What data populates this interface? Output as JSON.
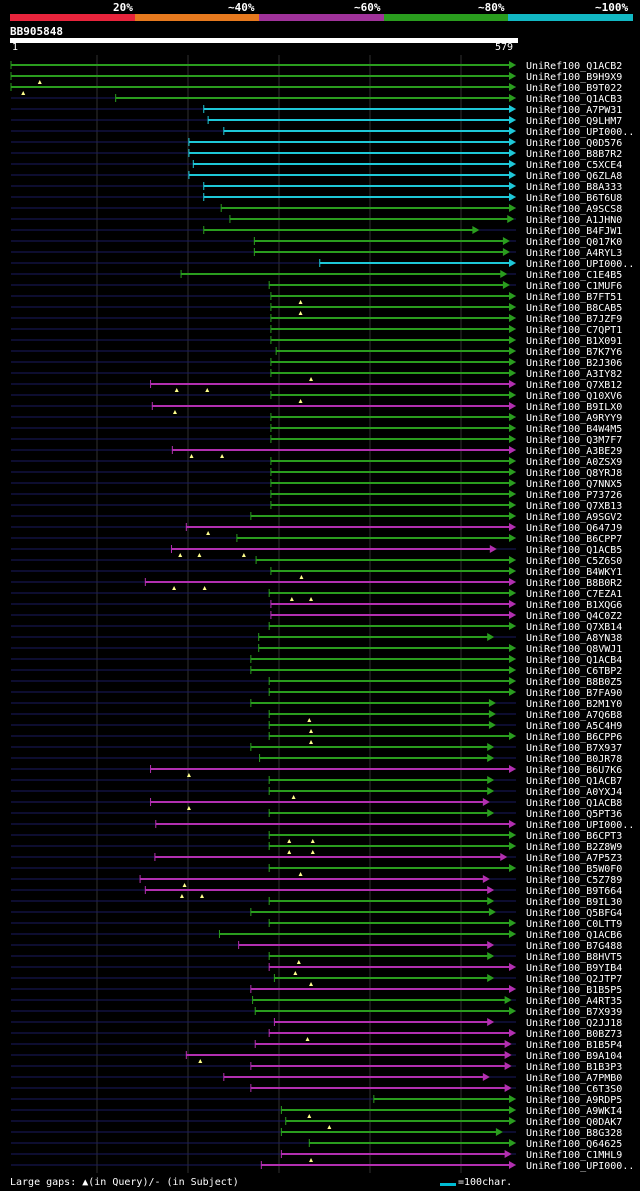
{
  "legend": {
    "labels": [
      "20%",
      "~40%",
      "~60%",
      "~80%",
      "~100%"
    ],
    "colors": [
      "#e8243c",
      "#e6791e",
      "#a0329a",
      "#2a9d1e",
      "#12b8c4"
    ]
  },
  "query": {
    "name": "BB905848",
    "start": "1",
    "end": "579",
    "length": 579
  },
  "hit_colors": {
    "green": "#2a9d1e",
    "magenta": "#b22fb0",
    "cyan": "#1ec8d8",
    "dark": "#1a1a60",
    "marker": "#ffff8c"
  },
  "hits": [
    {
      "name": "UniRef100_Q1ACB2",
      "color": "green",
      "segs": [
        [
          1,
          580
        ]
      ],
      "gaps": []
    },
    {
      "name": "UniRef100_B9H9X9",
      "color": "green",
      "segs": [
        [
          1,
          580
        ]
      ],
      "gaps": [
        34
      ]
    },
    {
      "name": "UniRef100_B9T022",
      "color": "green",
      "segs": [
        [
          1,
          580
        ]
      ],
      "gaps": [
        15
      ]
    },
    {
      "name": "UniRef100_Q1ACB3",
      "color": "green",
      "segs": [
        [
          121,
          580
        ]
      ],
      "gaps": []
    },
    {
      "name": "UniRef100_A7PW31",
      "color": "cyan",
      "segs": [
        [
          222,
          580
        ]
      ],
      "gaps": []
    },
    {
      "name": "UniRef100_Q9LHM7",
      "color": "cyan",
      "segs": [
        [
          227,
          580
        ]
      ],
      "gaps": []
    },
    {
      "name": "UniRef100_UPI000..",
      "color": "cyan",
      "segs": [
        [
          245,
          580
        ]
      ],
      "gaps": []
    },
    {
      "name": "UniRef100_Q0D576",
      "color": "cyan",
      "segs": [
        [
          205,
          580
        ]
      ],
      "gaps": []
    },
    {
      "name": "UniRef100_B8B7R2",
      "color": "cyan",
      "segs": [
        [
          205,
          580
        ]
      ],
      "gaps": []
    },
    {
      "name": "UniRef100_C5XCE4",
      "color": "cyan",
      "segs": [
        [
          210,
          580
        ]
      ],
      "gaps": []
    },
    {
      "name": "UniRef100_Q6ZLA8",
      "color": "cyan",
      "segs": [
        [
          205,
          580
        ]
      ],
      "gaps": []
    },
    {
      "name": "UniRef100_B8A333",
      "color": "cyan",
      "segs": [
        [
          222,
          580
        ]
      ],
      "gaps": []
    },
    {
      "name": "UniRef100_B6T6U8",
      "color": "cyan",
      "segs": [
        [
          222,
          580
        ]
      ],
      "gaps": []
    },
    {
      "name": "UniRef100_A9SCS8",
      "color": "green",
      "segs": [
        [
          242,
          580
        ]
      ],
      "gaps": []
    },
    {
      "name": "UniRef100_A1JHN0",
      "color": "green",
      "segs": [
        [
          252,
          578
        ]
      ],
      "gaps": []
    },
    {
      "name": "UniRef100_B4FJW1",
      "color": "green",
      "segs": [
        [
          222,
          538
        ]
      ],
      "gaps": []
    },
    {
      "name": "UniRef100_Q017K0",
      "color": "green",
      "segs": [
        [
          280,
          573
        ]
      ],
      "gaps": []
    },
    {
      "name": "UniRef100_A4RYL3",
      "color": "green",
      "segs": [
        [
          280,
          573
        ]
      ],
      "gaps": []
    },
    {
      "name": "UniRef100_UPI000..",
      "color": "cyan",
      "segs": [
        [
          355,
          580
        ]
      ],
      "gaps": []
    },
    {
      "name": "UniRef100_C1E4B5",
      "color": "green",
      "segs": [
        [
          196,
          570
        ]
      ],
      "gaps": []
    },
    {
      "name": "UniRef100_C1MUF6",
      "color": "green",
      "segs": [
        [
          297,
          573
        ]
      ],
      "gaps": []
    },
    {
      "name": "UniRef100_B7FT51",
      "color": "green",
      "segs": [
        [
          299,
          580
        ]
      ],
      "gaps": [
        333
      ]
    },
    {
      "name": "UniRef100_B8CAB5",
      "color": "green",
      "segs": [
        [
          299,
          580
        ]
      ],
      "gaps": [
        333
      ]
    },
    {
      "name": "UniRef100_B7JZF9",
      "color": "green",
      "segs": [
        [
          299,
          580
        ]
      ],
      "gaps": []
    },
    {
      "name": "UniRef100_C7QPT1",
      "color": "green",
      "segs": [
        [
          299,
          580
        ]
      ],
      "gaps": []
    },
    {
      "name": "UniRef100_B1X091",
      "color": "green",
      "segs": [
        [
          299,
          580
        ]
      ],
      "gaps": []
    },
    {
      "name": "UniRef100_B7K7Y6",
      "color": "green",
      "segs": [
        [
          305,
          580
        ]
      ],
      "gaps": []
    },
    {
      "name": "UniRef100_B2J306",
      "color": "green",
      "segs": [
        [
          299,
          580
        ]
      ],
      "gaps": []
    },
    {
      "name": "UniRef100_A3IY82",
      "color": "green",
      "segs": [
        [
          299,
          580
        ]
      ],
      "gaps": [
        345
      ]
    },
    {
      "name": "UniRef100_Q7XB12",
      "color": "magenta",
      "segs": [
        [
          161,
          580
        ]
      ],
      "gaps": [
        191,
        226
      ]
    },
    {
      "name": "UniRef100_Q10XV6",
      "color": "green",
      "segs": [
        [
          299,
          580
        ]
      ],
      "gaps": [
        333
      ]
    },
    {
      "name": "UniRef100_B9ILX0",
      "color": "magenta",
      "segs": [
        [
          163,
          580
        ]
      ],
      "gaps": [
        189
      ]
    },
    {
      "name": "UniRef100_A9RYY9",
      "color": "green",
      "segs": [
        [
          299,
          580
        ]
      ],
      "gaps": []
    },
    {
      "name": "UniRef100_B4W4M5",
      "color": "green",
      "segs": [
        [
          299,
          580
        ]
      ],
      "gaps": []
    },
    {
      "name": "UniRef100_Q3M7F7",
      "color": "green",
      "segs": [
        [
          299,
          580
        ]
      ],
      "gaps": []
    },
    {
      "name": "UniRef100_A3BE29",
      "color": "magenta",
      "segs": [
        [
          186,
          580
        ]
      ],
      "gaps": [
        208,
        243
      ]
    },
    {
      "name": "UniRef100_A0ZSX9",
      "color": "green",
      "segs": [
        [
          299,
          580
        ]
      ],
      "gaps": []
    },
    {
      "name": "UniRef100_Q8YRJ8",
      "color": "green",
      "segs": [
        [
          299,
          580
        ]
      ],
      "gaps": []
    },
    {
      "name": "UniRef100_Q7NNX5",
      "color": "green",
      "segs": [
        [
          299,
          580
        ]
      ],
      "gaps": []
    },
    {
      "name": "UniRef100_P73726",
      "color": "green",
      "segs": [
        [
          299,
          580
        ]
      ],
      "gaps": []
    },
    {
      "name": "UniRef100_Q7XB13",
      "color": "green",
      "segs": [
        [
          299,
          580
        ]
      ],
      "gaps": []
    },
    {
      "name": "UniRef100_A9SGV2",
      "color": "green",
      "segs": [
        [
          276,
          580
        ]
      ],
      "gaps": []
    },
    {
      "name": "UniRef100_Q647J9",
      "color": "magenta",
      "segs": [
        [
          202,
          580
        ]
      ],
      "gaps": [
        227
      ]
    },
    {
      "name": "UniRef100_B6CPP7",
      "color": "green",
      "segs": [
        [
          260,
          580
        ]
      ],
      "gaps": []
    },
    {
      "name": "UniRef100_Q1ACB5",
      "color": "magenta",
      "segs": [
        [
          185,
          558
        ]
      ],
      "gaps": [
        195,
        217,
        268
      ]
    },
    {
      "name": "UniRef100_C5Z6S0",
      "color": "green",
      "segs": [
        [
          282,
          580
        ]
      ],
      "gaps": []
    },
    {
      "name": "UniRef100_B4WKY1",
      "color": "green",
      "segs": [
        [
          299,
          580
        ]
      ],
      "gaps": [
        334
      ]
    },
    {
      "name": "UniRef100_B8B0R2",
      "color": "magenta",
      "segs": [
        [
          155,
          580
        ]
      ],
      "gaps": [
        188,
        223
      ]
    },
    {
      "name": "UniRef100_C7EZA1",
      "color": "green",
      "segs": [
        [
          297,
          580
        ]
      ],
      "gaps": [
        323,
        345
      ]
    },
    {
      "name": "UniRef100_B1XQG6",
      "color": "magenta",
      "segs": [
        [
          299,
          580
        ]
      ],
      "gaps": []
    },
    {
      "name": "UniRef100_Q4C0Z2",
      "color": "magenta",
      "segs": [
        [
          299,
          580
        ]
      ],
      "gaps": []
    },
    {
      "name": "UniRef100_Q7XB14",
      "color": "green",
      "segs": [
        [
          297,
          580
        ]
      ],
      "gaps": []
    },
    {
      "name": "UniRef100_A8YN38",
      "color": "green",
      "segs": [
        [
          285,
          555
        ]
      ],
      "gaps": []
    },
    {
      "name": "UniRef100_Q8VWJ1",
      "color": "green",
      "segs": [
        [
          285,
          580
        ]
      ],
      "gaps": []
    },
    {
      "name": "UniRef100_Q1ACB4",
      "color": "green",
      "segs": [
        [
          276,
          580
        ]
      ],
      "gaps": []
    },
    {
      "name": "UniRef100_C6TBP2",
      "color": "green",
      "segs": [
        [
          276,
          580
        ]
      ],
      "gaps": []
    },
    {
      "name": "UniRef100_B8B0Z5",
      "color": "green",
      "segs": [
        [
          297,
          580
        ]
      ],
      "gaps": []
    },
    {
      "name": "UniRef100_B7FA90",
      "color": "green",
      "segs": [
        [
          297,
          580
        ]
      ],
      "gaps": []
    },
    {
      "name": "UniRef100_B2M1Y0",
      "color": "green",
      "segs": [
        [
          276,
          557
        ]
      ],
      "gaps": []
    },
    {
      "name": "UniRef100_A7Q6B8",
      "color": "green",
      "segs": [
        [
          297,
          557
        ]
      ],
      "gaps": [
        343
      ]
    },
    {
      "name": "UniRef100_A5C4H9",
      "color": "green",
      "segs": [
        [
          297,
          557
        ]
      ],
      "gaps": [
        345
      ]
    },
    {
      "name": "UniRef100_B6CPP6",
      "color": "green",
      "segs": [
        [
          297,
          580
        ]
      ],
      "gaps": [
        345
      ]
    },
    {
      "name": "UniRef100_B7X937",
      "color": "green",
      "segs": [
        [
          276,
          555
        ]
      ],
      "gaps": []
    },
    {
      "name": "UniRef100_B0JR78",
      "color": "green",
      "segs": [
        [
          286,
          555
        ]
      ],
      "gaps": []
    },
    {
      "name": "UniRef100_B6U7K6",
      "color": "magenta",
      "segs": [
        [
          161,
          580
        ]
      ],
      "gaps": [
        205
      ]
    },
    {
      "name": "UniRef100_Q1ACB7",
      "color": "green",
      "segs": [
        [
          297,
          555
        ]
      ],
      "gaps": []
    },
    {
      "name": "UniRef100_A0YXJ4",
      "color": "green",
      "segs": [
        [
          297,
          555
        ]
      ],
      "gaps": [
        325
      ]
    },
    {
      "name": "UniRef100_Q1ACB8",
      "color": "magenta",
      "segs": [
        [
          161,
          550
        ]
      ],
      "gaps": [
        205
      ]
    },
    {
      "name": "UniRef100_Q5PT36",
      "color": "green",
      "segs": [
        [
          297,
          555
        ]
      ],
      "gaps": []
    },
    {
      "name": "UniRef100_UPI000..",
      "color": "magenta",
      "segs": [
        [
          167,
          580
        ]
      ],
      "gaps": []
    },
    {
      "name": "UniRef100_B6CPT3",
      "color": "green",
      "segs": [
        [
          297,
          580
        ]
      ],
      "gaps": [
        320,
        347
      ]
    },
    {
      "name": "UniRef100_B2Z8W9",
      "color": "green",
      "segs": [
        [
          297,
          580
        ]
      ],
      "gaps": [
        320,
        347
      ]
    },
    {
      "name": "UniRef100_A7P5Z3",
      "color": "magenta",
      "segs": [
        [
          166,
          570
        ]
      ],
      "gaps": []
    },
    {
      "name": "UniRef100_B5W0F0",
      "color": "green",
      "segs": [
        [
          297,
          580
        ]
      ],
      "gaps": [
        333
      ]
    },
    {
      "name": "UniRef100_C5Z789",
      "color": "magenta",
      "segs": [
        [
          149,
          550
        ]
      ],
      "gaps": [
        200
      ]
    },
    {
      "name": "UniRef100_B9T664",
      "color": "magenta",
      "segs": [
        [
          155,
          555
        ]
      ],
      "gaps": [
        197,
        220
      ]
    },
    {
      "name": "UniRef100_B9IL30",
      "color": "green",
      "segs": [
        [
          297,
          555
        ]
      ],
      "gaps": []
    },
    {
      "name": "UniRef100_Q5BFG4",
      "color": "green",
      "segs": [
        [
          276,
          557
        ]
      ],
      "gaps": []
    },
    {
      "name": "UniRef100_C0LTT9",
      "color": "green",
      "segs": [
        [
          297,
          580
        ]
      ],
      "gaps": []
    },
    {
      "name": "UniRef100_Q1ACB6",
      "color": "green",
      "segs": [
        [
          240,
          580
        ]
      ],
      "gaps": []
    },
    {
      "name": "UniRef100_B7G488",
      "color": "magenta",
      "segs": [
        [
          262,
          555
        ]
      ],
      "gaps": []
    },
    {
      "name": "UniRef100_B8HVT5",
      "color": "green",
      "segs": [
        [
          297,
          555
        ]
      ],
      "gaps": [
        331
      ]
    },
    {
      "name": "UniRef100_B9YIB4",
      "color": "magenta",
      "segs": [
        [
          297,
          580
        ]
      ],
      "gaps": [
        327
      ]
    },
    {
      "name": "UniRef100_Q2JTP7",
      "color": "green",
      "segs": [
        [
          303,
          555
        ]
      ],
      "gaps": [
        345
      ]
    },
    {
      "name": "UniRef100_B1B5P5",
      "color": "magenta",
      "segs": [
        [
          276,
          580
        ]
      ],
      "gaps": []
    },
    {
      "name": "UniRef100_A4RT35",
      "color": "green",
      "segs": [
        [
          278,
          575
        ]
      ],
      "gaps": []
    },
    {
      "name": "UniRef100_B7X939",
      "color": "green",
      "segs": [
        [
          281,
          580
        ]
      ],
      "gaps": []
    },
    {
      "name": "UniRef100_Q2JJ18",
      "color": "magenta",
      "segs": [
        [
          303,
          555
        ]
      ],
      "gaps": []
    },
    {
      "name": "UniRef100_B0BZ73",
      "color": "magenta",
      "segs": [
        [
          297,
          580
        ]
      ],
      "gaps": [
        341
      ]
    },
    {
      "name": "UniRef100_B1B5P4",
      "color": "magenta",
      "segs": [
        [
          281,
          575
        ]
      ],
      "gaps": []
    },
    {
      "name": "UniRef100_B9A104",
      "color": "magenta",
      "segs": [
        [
          202,
          575
        ]
      ],
      "gaps": [
        218
      ]
    },
    {
      "name": "UniRef100_B1B3P3",
      "color": "magenta",
      "segs": [
        [
          276,
          575
        ]
      ],
      "gaps": []
    },
    {
      "name": "UniRef100_A7PMB0",
      "color": "magenta",
      "segs": [
        [
          245,
          550
        ]
      ],
      "gaps": []
    },
    {
      "name": "UniRef100_C6T3S0",
      "color": "magenta",
      "segs": [
        [
          276,
          575
        ]
      ],
      "gaps": []
    },
    {
      "name": "UniRef100_A9RDP5",
      "color": "green",
      "segs": [
        [
          417,
          580
        ]
      ],
      "gaps": []
    },
    {
      "name": "UniRef100_A9WKI4",
      "color": "green",
      "segs": [
        [
          311,
          580
        ]
      ],
      "gaps": [
        343
      ]
    },
    {
      "name": "UniRef100_Q0DAK7",
      "color": "green",
      "segs": [
        [
          316,
          580
        ]
      ],
      "gaps": [
        366
      ]
    },
    {
      "name": "UniRef100_B8G328",
      "color": "green",
      "segs": [
        [
          311,
          565
        ]
      ],
      "gaps": []
    },
    {
      "name": "UniRef100_Q64625",
      "color": "green",
      "segs": [
        [
          343,
          580
        ]
      ],
      "gaps": []
    },
    {
      "name": "UniRef100_C1MHL9",
      "color": "magenta",
      "segs": [
        [
          311,
          575
        ]
      ],
      "gaps": [
        345
      ]
    },
    {
      "name": "UniRef100_UPI000..",
      "color": "magenta",
      "segs": [
        [
          288,
          580
        ]
      ],
      "gaps": []
    }
  ],
  "footer": {
    "large_gaps": "Large gaps: ▲(in Query)/- (in Subject)",
    "scale_key": "=100char."
  }
}
